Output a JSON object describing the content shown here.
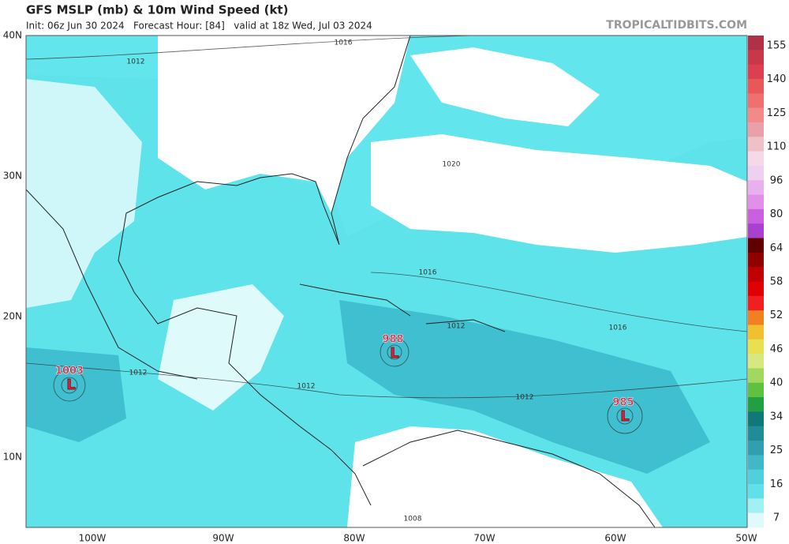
{
  "header": {
    "title": "GFS MSLP (mb) & 10m Wind Speed (kt)",
    "subtitle": "Init: 06z Jun 30 2024   Forecast Hour: [84]   valid at 18z Wed, Jul 03 2024",
    "credit": "TROPICALTIDBITS.COM"
  },
  "map": {
    "lat_labels": [
      "40N",
      "30N",
      "20N",
      "10N"
    ],
    "lon_labels": [
      "100W",
      "90W",
      "80W",
      "70W",
      "60W",
      "50W"
    ],
    "lows": [
      {
        "pressure": "1003",
        "symbol": "L"
      },
      {
        "pressure": "988",
        "symbol": "L"
      },
      {
        "pressure": "985",
        "symbol": "L"
      }
    ],
    "isobar_labels": [
      "1012",
      "1016",
      "1020",
      "1016",
      "1012",
      "1016",
      "1012",
      "1012",
      "1012",
      "1008"
    ]
  },
  "colorbar": {
    "labels": [
      "155",
      "140",
      "125",
      "110",
      "96",
      "80",
      "64",
      "58",
      "52",
      "46",
      "40",
      "34",
      "25",
      "16",
      "7"
    ]
  }
}
